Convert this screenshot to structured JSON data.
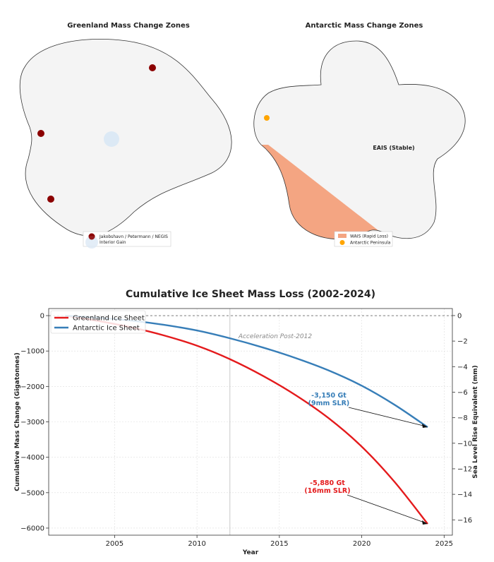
{
  "greenland_panel": {
    "title": "Greenland Mass Change Zones",
    "legend": [
      "Jakobshavn / Petermann / NEGIS",
      "Interior Gain"
    ]
  },
  "antarctic_panel": {
    "title": "Antarctic Mass Change Zones",
    "region_label": "EAIS (Stable)",
    "legend": [
      "WAIS (Rapid Loss)",
      "Antarctic Peninsula"
    ]
  },
  "colors": {
    "greenland": "#e41a1c",
    "antarctic": "#377eb8",
    "outlet_dots": "#8b0000",
    "wais": "#f4a582",
    "peninsula": "#ffa500",
    "interior": "#dce9f5"
  },
  "chart_data": {
    "type": "line",
    "title": "Cumulative Ice Sheet Mass Loss (2002-2024)",
    "xlabel": "Year",
    "ylabel": "Cumulative Mass Change (Gigatonnes)",
    "ylabel_right": "Sea Level Rise Equivalent (mm)",
    "xlim": [
      2001,
      2025.5
    ],
    "ylim": [
      -6200,
      200
    ],
    "ylim_right": [
      -17.2,
      0.55
    ],
    "x_ticks": [
      2005,
      2010,
      2015,
      2020,
      2025
    ],
    "y_ticks": [
      0,
      -1000,
      -2000,
      -3000,
      -4000,
      -5000,
      -6000
    ],
    "y_ticks_right": [
      0,
      -2,
      -4,
      -6,
      -8,
      -10,
      -12,
      -14,
      -16
    ],
    "grid": true,
    "legend_position": "top-left",
    "vline": {
      "x": 2012,
      "label": "Acceleration Post-2012"
    },
    "x": [
      2002,
      2004,
      2006,
      2008,
      2010,
      2012,
      2014,
      2016,
      2018,
      2020,
      2022,
      2024
    ],
    "series": [
      {
        "name": "Greenland Ice Sheet",
        "color": "#e41a1c",
        "values": [
          0,
          -150,
          -330,
          -560,
          -850,
          -1230,
          -1700,
          -2250,
          -2900,
          -3700,
          -4700,
          -5880
        ]
      },
      {
        "name": "Antarctic Ice Sheet",
        "color": "#377eb8",
        "values": [
          0,
          -60,
          -140,
          -260,
          -420,
          -640,
          -900,
          -1200,
          -1550,
          -1980,
          -2520,
          -3150
        ]
      }
    ],
    "annotations": [
      {
        "series": "Antarctic Ice Sheet",
        "line1": "-3,150 Gt",
        "line2": "(9mm SLR)",
        "x": 2024,
        "y": -3150
      },
      {
        "series": "Greenland Ice Sheet",
        "line1": "-5,880 Gt",
        "line2": "(16mm SLR)",
        "x": 2024,
        "y": -5880
      }
    ]
  }
}
